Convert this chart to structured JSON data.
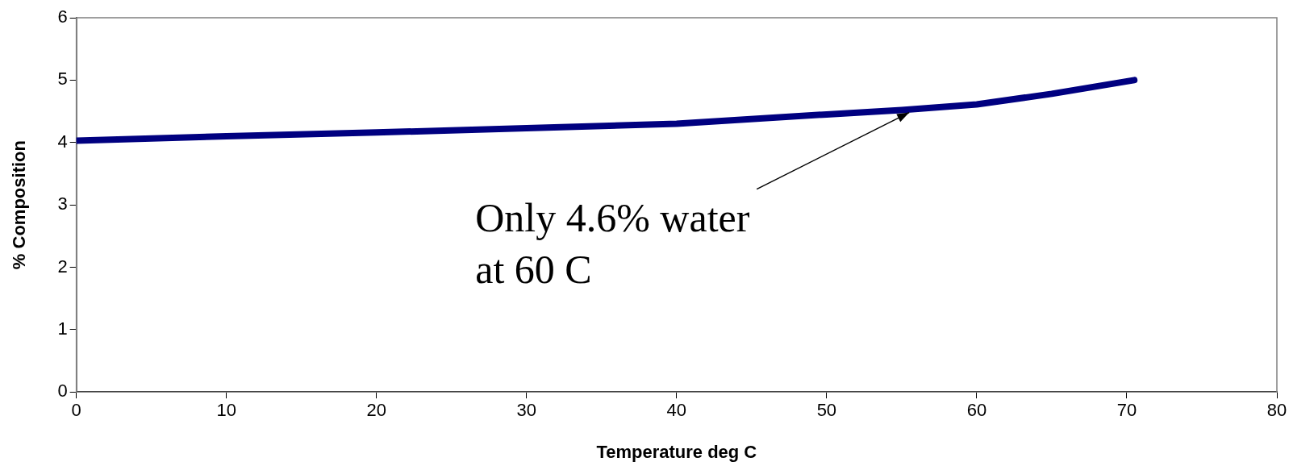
{
  "chart_data": {
    "type": "line",
    "xlabel": "Temperature deg C",
    "ylabel": "% Composition",
    "series": [
      {
        "color": "#000080",
        "x": [
          0,
          10,
          20,
          30,
          40,
          50,
          55,
          60,
          65,
          70.5
        ],
        "values": [
          4.03,
          4.1,
          4.16,
          4.23,
          4.3,
          4.45,
          4.52,
          4.61,
          4.78,
          5.0
        ]
      }
    ],
    "xlim": [
      0,
      80
    ],
    "xticks": [
      0,
      10,
      20,
      30,
      40,
      50,
      60,
      70,
      80
    ],
    "ylim": [
      0,
      6
    ],
    "yticks": [
      0,
      1,
      2,
      3,
      4,
      5,
      6
    ],
    "grid": false,
    "legend": false,
    "marker": "none",
    "line_style": "solid",
    "annotations": [
      {
        "text": "Only 4.6% water\nat 60 C",
        "x": 55.5,
        "y": 4.48
      }
    ]
  }
}
